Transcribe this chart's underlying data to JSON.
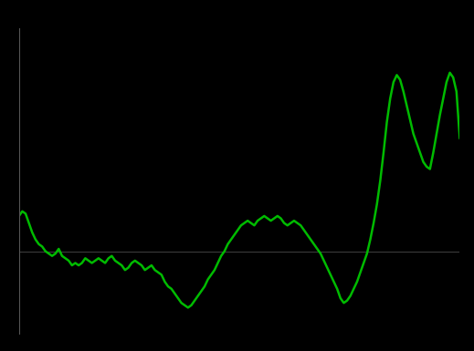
{
  "background_color": "#000000",
  "line_color": "#00BB00",
  "zero_line_color": "#3a3a3a",
  "line_width": 1.8,
  "figsize": [
    5.19,
    3.85
  ],
  "dpi": 100,
  "values": [
    1.5,
    1.7,
    1.6,
    1.2,
    0.8,
    0.5,
    0.3,
    0.2,
    0.0,
    -0.1,
    -0.2,
    -0.1,
    0.1,
    -0.2,
    -0.3,
    -0.4,
    -0.6,
    -0.5,
    -0.6,
    -0.5,
    -0.3,
    -0.4,
    -0.5,
    -0.4,
    -0.3,
    -0.4,
    -0.5,
    -0.3,
    -0.2,
    -0.4,
    -0.5,
    -0.6,
    -0.8,
    -0.7,
    -0.5,
    -0.4,
    -0.5,
    -0.6,
    -0.8,
    -0.7,
    -0.6,
    -0.8,
    -0.9,
    -1.0,
    -1.3,
    -1.5,
    -1.6,
    -1.8,
    -2.0,
    -2.2,
    -2.3,
    -2.4,
    -2.3,
    -2.1,
    -1.9,
    -1.7,
    -1.5,
    -1.2,
    -1.0,
    -0.8,
    -0.5,
    -0.2,
    0.0,
    0.3,
    0.5,
    0.7,
    0.9,
    1.1,
    1.2,
    1.3,
    1.2,
    1.1,
    1.3,
    1.4,
    1.5,
    1.4,
    1.3,
    1.4,
    1.5,
    1.4,
    1.2,
    1.1,
    1.2,
    1.3,
    1.2,
    1.1,
    0.9,
    0.7,
    0.5,
    0.3,
    0.1,
    -0.1,
    -0.4,
    -0.7,
    -1.0,
    -1.3,
    -1.6,
    -2.0,
    -2.2,
    -2.1,
    -1.9,
    -1.6,
    -1.3,
    -0.9,
    -0.5,
    -0.1,
    0.5,
    1.2,
    2.0,
    3.0,
    4.2,
    5.5,
    6.5,
    7.2,
    7.5,
    7.3,
    6.8,
    6.2,
    5.6,
    5.0,
    4.6,
    4.2,
    3.8,
    3.6,
    3.5,
    4.2,
    5.0,
    5.8,
    6.5,
    7.2,
    7.6,
    7.4,
    6.8,
    4.8
  ],
  "ylim": [
    -3.5,
    9.5
  ],
  "left_spine_color": "#555555"
}
